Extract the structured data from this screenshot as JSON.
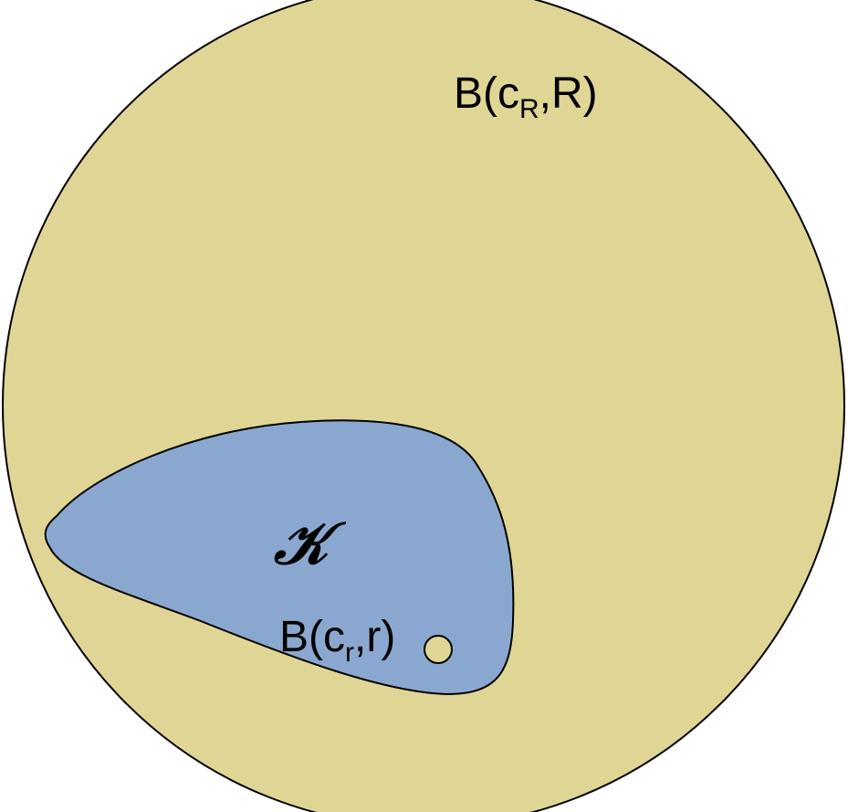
{
  "diagram": {
    "outer_ball": {
      "label": {
        "prefix": "B(c",
        "subscript": "R",
        "suffix": ",R)"
      },
      "fill_color": "#dfd595"
    },
    "set_k": {
      "label": "𝒦",
      "fill_color": "#8aa8cf"
    },
    "inner_ball": {
      "label": {
        "prefix": "B(c",
        "subscript": "r",
        "suffix": ",r)"
      },
      "fill_color": "#dfd595"
    },
    "stroke_color": "#000000"
  }
}
